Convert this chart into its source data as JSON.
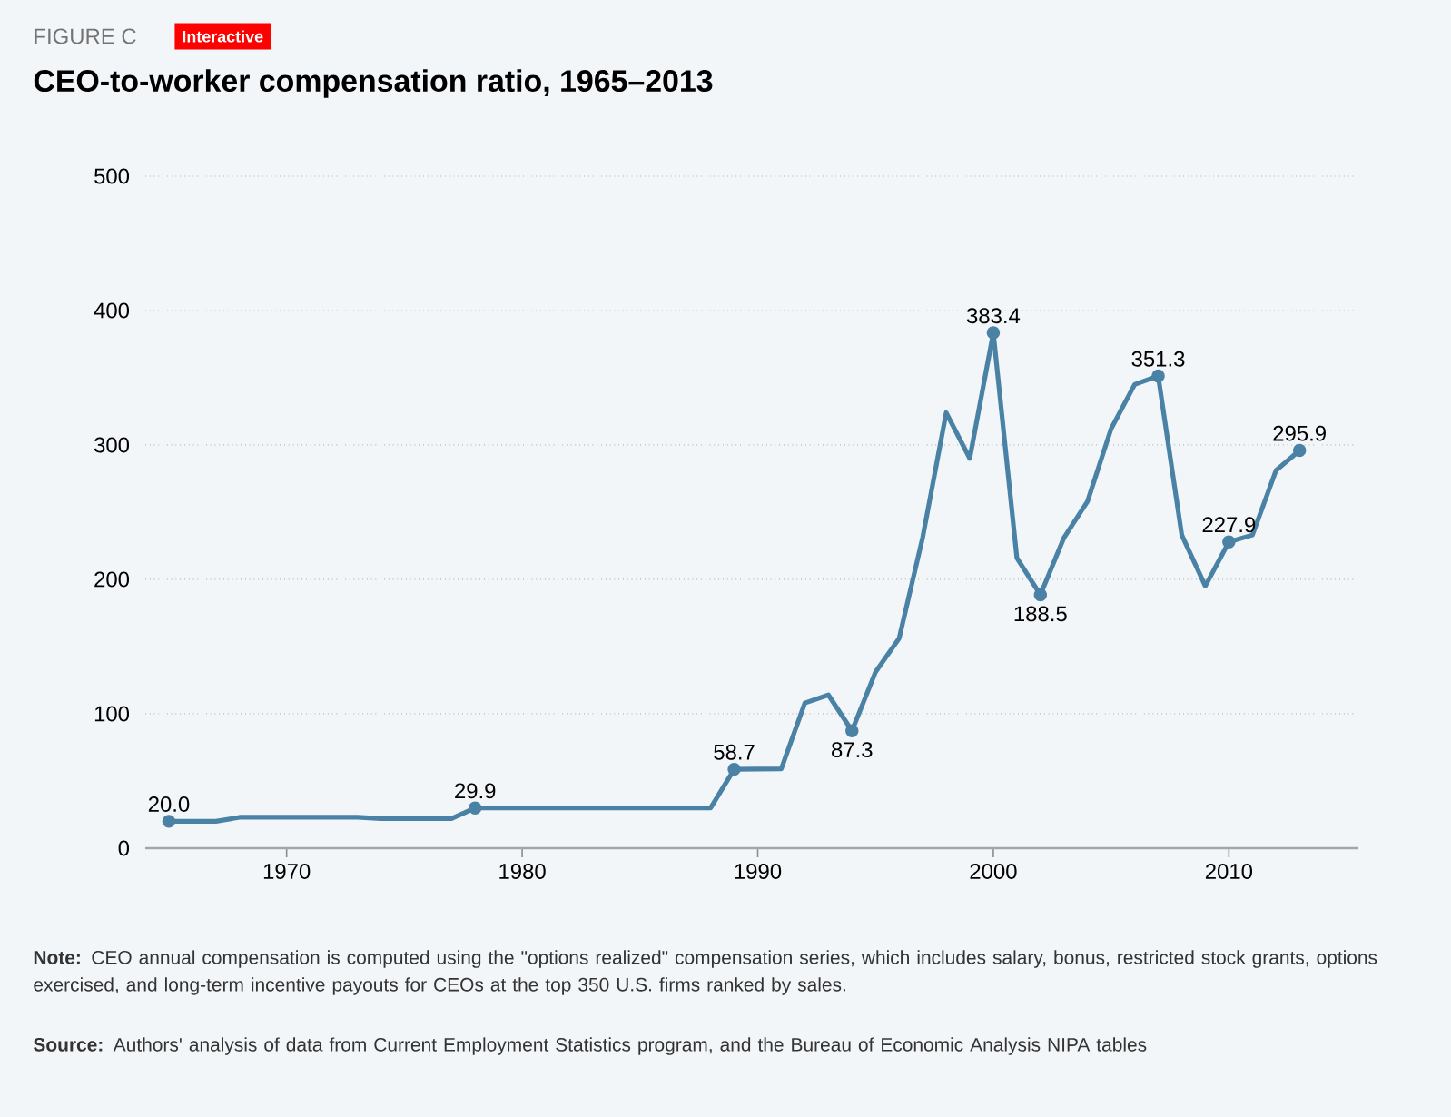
{
  "chart_data": {
    "type": "line",
    "title": "CEO-to-worker compensation ratio, 1965–2013",
    "x": [
      1965,
      1967,
      1968,
      1973,
      1974,
      1977,
      1978,
      1988,
      1989,
      1991,
      1992,
      1993,
      1994,
      1995,
      1996,
      1997,
      1998,
      1999,
      2000,
      2001,
      2002,
      2003,
      2004,
      2005,
      2006,
      2007,
      2008,
      2009,
      2010,
      2011,
      2012,
      2013
    ],
    "series": [
      {
        "color": "#4a82a6",
        "values": [
          20.0,
          20,
          23,
          23,
          22,
          22,
          29.9,
          30,
          58.7,
          59,
          108,
          114,
          87.3,
          131,
          156,
          231,
          324,
          290,
          383.4,
          216,
          188.5,
          231,
          258,
          312,
          345,
          351.3,
          233,
          195,
          227.9,
          233,
          281,
          295.9
        ]
      }
    ],
    "xlim": [
      1964,
      2015.5
    ],
    "xticks": [
      1970,
      1980,
      1990,
      2000,
      2010
    ],
    "ylim": [
      0,
      500
    ],
    "yticks": [
      0,
      100,
      200,
      300,
      400,
      500
    ],
    "grid": "y",
    "line_style": "solid",
    "annotations": [
      "FIGURE C",
      "Interactive",
      "**Note:** CEO annual compensation is computed using the \"options realized\" compensation series, which includes salary, bonus, restricted stock grants, options exercised, and long-term incentive payouts for CEOs at the top 350 U.S. firms ranked by sales.",
      "**Source:** Authors' analysis of data from Current Employment Statistics program, and the Bureau of Economic Analysis NIPA tables",
      {
        "text": "20.0",
        "x": 1965,
        "y": 20.0
      },
      {
        "text": "29.9",
        "x": 1978,
        "y": 29.9
      },
      {
        "text": "58.7",
        "x": 1989,
        "y": 58.7
      },
      {
        "text": "87.3",
        "x": 1994,
        "y": 87.3
      },
      {
        "text": "383.4",
        "x": 2000,
        "y": 383.4
      },
      {
        "text": "188.5",
        "x": 2002,
        "y": 188.5
      },
      {
        "text": "351.3",
        "x": 2007,
        "y": 351.3
      },
      {
        "text": "227.9",
        "x": 2010,
        "y": 227.9
      },
      {
        "text": "295.9",
        "x": 2013,
        "y": 295.9
      }
    ]
  }
}
